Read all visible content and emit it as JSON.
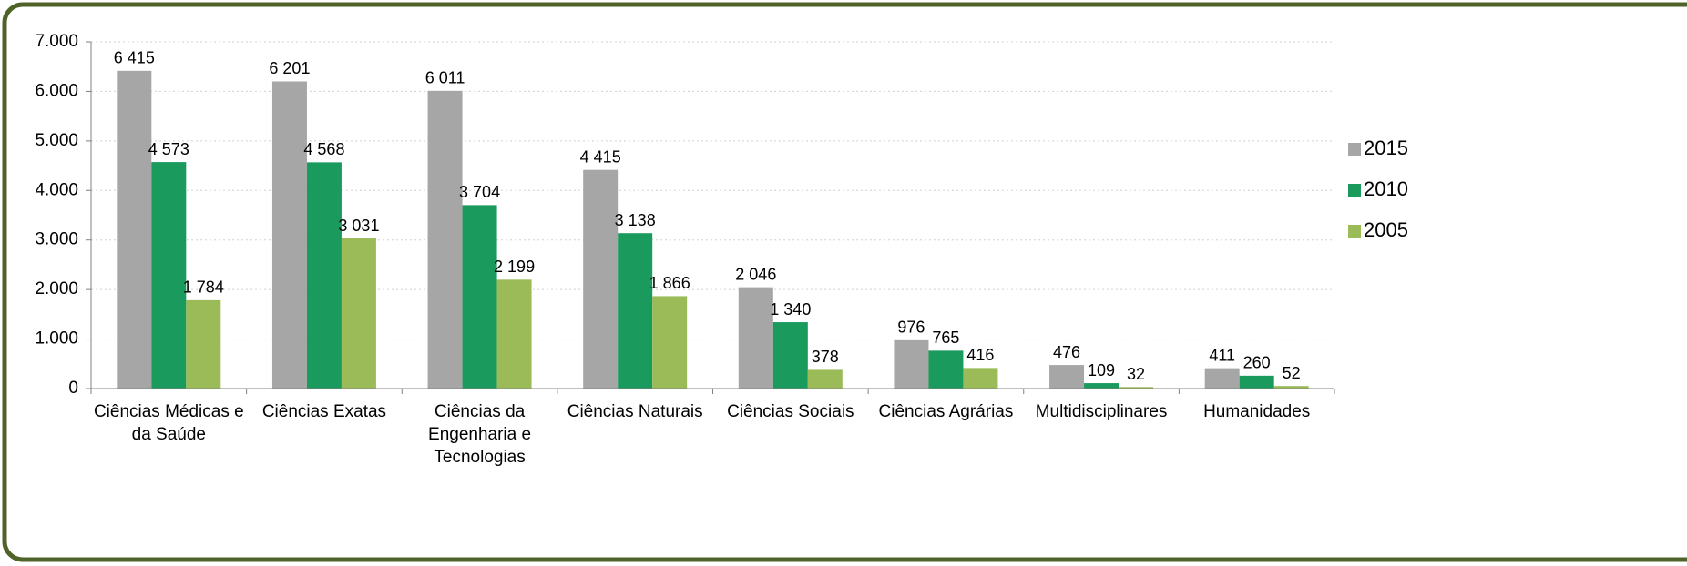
{
  "chart_data": {
    "type": "bar",
    "categories": [
      "Ciências Médicas e da Saúde",
      "Ciências Exatas",
      "Ciências da Engenharia e Tecnologias",
      "Ciências Naturais",
      "Ciências Sociais",
      "Ciências Agrárias",
      "Multidisciplinares",
      "Humanidades"
    ],
    "series": [
      {
        "name": "2015",
        "color": "#a6a6a6",
        "values": [
          6415,
          6201,
          6011,
          4415,
          2046,
          976,
          476,
          411
        ],
        "value_labels": [
          "6 415",
          "6 201",
          "6 011",
          "4 415",
          "2 046",
          "976",
          "476",
          "411"
        ]
      },
      {
        "name": "2010",
        "color": "#1a9a5c",
        "values": [
          4573,
          4568,
          3704,
          3138,
          1340,
          765,
          109,
          260
        ],
        "value_labels": [
          "4 573",
          "4 568",
          "3 704",
          "3 138",
          "1 340",
          "765",
          "109",
          "260"
        ]
      },
      {
        "name": "2005",
        "color": "#9bbb59",
        "values": [
          1784,
          3031,
          2199,
          1866,
          378,
          416,
          32,
          52
        ],
        "value_labels": [
          "1 784",
          "3 031",
          "2 199",
          "1 866",
          "378",
          "416",
          "32",
          "52"
        ]
      }
    ],
    "ylim": [
      0,
      7000
    ],
    "yticks": [
      0,
      {
        "value": 1000,
        "label": "1.000"
      },
      {
        "value": 2000,
        "label": "2.000"
      },
      {
        "value": 3000,
        "label": "3.000"
      },
      {
        "value": 4000,
        "label": "4.000"
      },
      {
        "value": 5000,
        "label": "5.000"
      },
      {
        "value": 6000,
        "label": "6.000"
      },
      {
        "value": 7000,
        "label": "7.000"
      }
    ],
    "grid": true,
    "legend": "right"
  }
}
